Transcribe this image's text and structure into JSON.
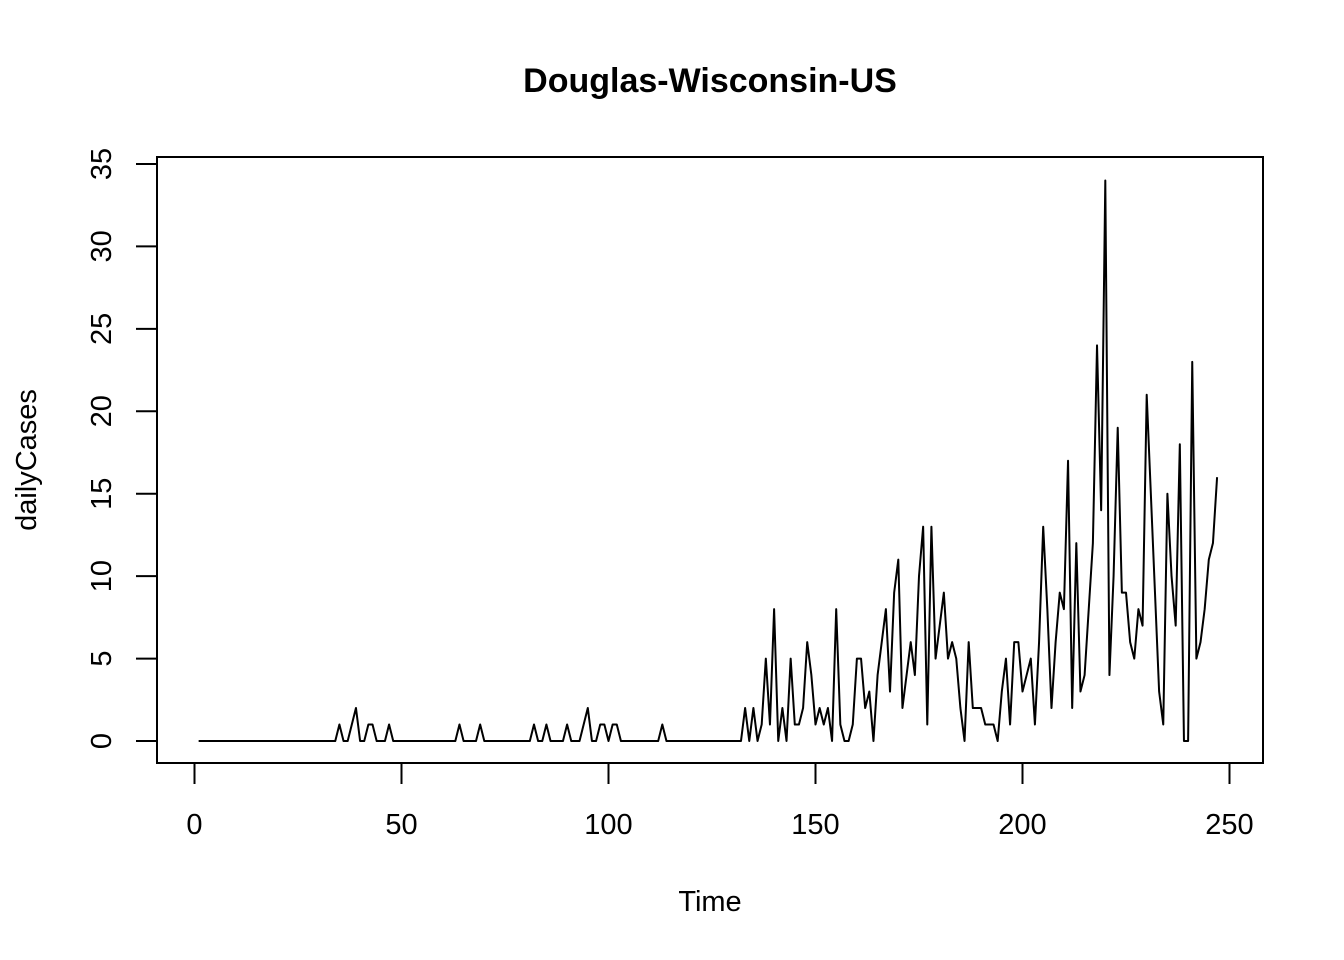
{
  "chart_data": {
    "type": "line",
    "title": "Douglas-Wisconsin-US",
    "xlabel": "Time",
    "ylabel": "dailyCases",
    "xlim": [
      1,
      248
    ],
    "ylim": [
      0,
      34
    ],
    "x_ticks": [
      0,
      50,
      100,
      150,
      200,
      250
    ],
    "y_ticks": [
      0,
      5,
      10,
      15,
      20,
      25,
      30,
      35
    ],
    "line_color": "#000000",
    "grid": false,
    "series": [
      {
        "x_start": 1,
        "values": [
          0,
          0,
          0,
          0,
          0,
          0,
          0,
          0,
          0,
          0,
          0,
          0,
          0,
          0,
          0,
          0,
          0,
          0,
          0,
          0,
          0,
          0,
          0,
          0,
          0,
          0,
          0,
          0,
          0,
          0,
          0,
          0,
          0,
          0,
          1,
          0,
          0,
          1,
          2,
          0,
          0,
          1,
          1,
          0,
          0,
          0,
          1,
          0,
          0,
          0,
          0,
          0,
          0,
          0,
          0,
          0,
          0,
          0,
          0,
          0,
          0,
          0,
          0,
          1,
          0,
          0,
          0,
          0,
          1,
          0,
          0,
          0,
          0,
          0,
          0,
          0,
          0,
          0,
          0,
          0,
          0,
          1,
          0,
          0,
          1,
          0,
          0,
          0,
          0,
          1,
          0,
          0,
          0,
          1,
          2,
          0,
          0,
          1,
          1,
          0,
          1,
          1,
          0,
          0,
          0,
          0,
          0,
          0,
          0,
          0,
          0,
          0,
          1,
          0,
          0,
          0,
          0,
          0,
          0,
          0,
          0,
          0,
          0,
          0,
          0,
          0,
          0,
          0,
          0,
          0,
          0,
          0,
          2,
          0,
          2,
          0,
          1,
          5,
          1,
          8,
          0,
          2,
          0,
          5,
          1,
          1,
          2,
          6,
          4,
          1,
          2,
          1,
          2,
          0,
          8,
          1,
          0,
          0,
          1,
          5,
          5,
          2,
          3,
          0,
          4,
          6,
          8,
          3,
          9,
          11,
          2,
          4,
          6,
          4,
          10,
          13,
          1,
          13,
          5,
          7,
          9,
          5,
          6,
          5,
          2,
          0,
          6,
          2,
          2,
          2,
          1,
          1,
          1,
          0,
          3,
          5,
          1,
          6,
          6,
          3,
          4,
          5,
          1,
          6,
          13,
          8,
          2,
          6,
          9,
          8,
          17,
          2,
          12,
          3,
          4,
          8,
          12,
          24,
          14,
          34,
          4,
          10,
          19,
          9,
          9,
          6,
          5,
          8,
          7,
          21,
          15,
          9,
          3,
          1,
          15,
          10,
          7,
          18,
          0,
          0,
          23,
          5,
          6,
          8,
          11,
          12,
          16
        ]
      }
    ]
  }
}
